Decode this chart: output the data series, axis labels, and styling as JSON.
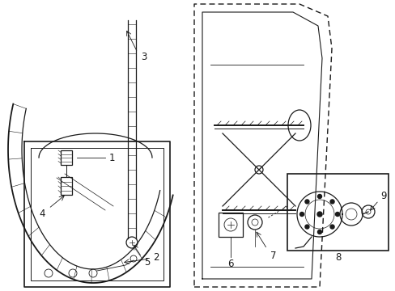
{
  "bg_color": "#ffffff",
  "line_color": "#1a1a1a",
  "lw": 0.9,
  "fig_w": 4.89,
  "fig_h": 3.6,
  "dpi": 100
}
